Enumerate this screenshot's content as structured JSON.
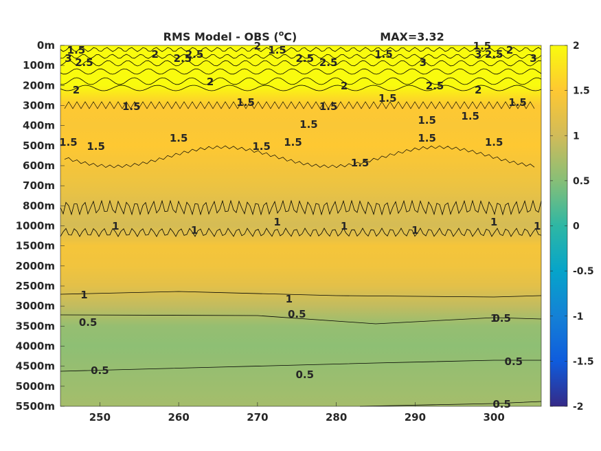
{
  "chart_data": {
    "type": "heatmap",
    "title": "RMS Model - OBS (",
    "title_sup": "o",
    "title_unit": "C)",
    "annotation": "MAX=3.32",
    "x_ticks": [
      250,
      260,
      270,
      280,
      290,
      300
    ],
    "xlim": [
      245,
      306
    ],
    "y_tick_labels": [
      "0m",
      "100m",
      "200m",
      "300m",
      "400m",
      "500m",
      "600m",
      "700m",
      "800m",
      "1000m",
      "1500m",
      "2000m",
      "2500m",
      "3000m",
      "3500m",
      "4000m",
      "4500m",
      "5000m",
      "5500m"
    ],
    "colorbar": {
      "range": [
        -2,
        2
      ],
      "ticks": [
        "2",
        "1.5",
        "1",
        "0.5",
        "0",
        "-0.5",
        "-1",
        "-1.5",
        "-2"
      ]
    },
    "depth_profile_rms": [
      {
        "level": "0m",
        "value": 2.3
      },
      {
        "level": "100m",
        "value": 2.6
      },
      {
        "level": "200m",
        "value": 2.0
      },
      {
        "level": "300m",
        "value": 1.5
      },
      {
        "level": "400m",
        "value": 1.45
      },
      {
        "level": "500m",
        "value": 1.5
      },
      {
        "level": "600m",
        "value": 1.4
      },
      {
        "level": "700m",
        "value": 1.3
      },
      {
        "level": "800m",
        "value": 1.15
      },
      {
        "level": "1000m",
        "value": 1.05
      },
      {
        "level": "1500m",
        "value": 1.4
      },
      {
        "level": "2000m",
        "value": 1.35
      },
      {
        "level": "2500m",
        "value": 1.2
      },
      {
        "level": "3000m",
        "value": 0.9
      },
      {
        "level": "3500m",
        "value": 0.6
      },
      {
        "level": "4000m",
        "value": 0.55
      },
      {
        "level": "4500m",
        "value": 0.6
      },
      {
        "level": "5000m",
        "value": 0.65
      },
      {
        "level": "5500m",
        "value": 0.7
      }
    ],
    "contour_labels": [
      {
        "text": "1.5",
        "x": 247,
        "level": "0m"
      },
      {
        "text": "2",
        "x": 257,
        "level": "0m"
      },
      {
        "text": "2",
        "x": 270,
        "level": "0m"
      },
      {
        "text": "1.5",
        "x": 272.5,
        "level": "0m"
      },
      {
        "text": "1.5",
        "x": 286,
        "level": "0m"
      },
      {
        "text": "1.5",
        "x": 298.5,
        "level": "0m"
      },
      {
        "text": "2",
        "x": 302,
        "level": "0m"
      },
      {
        "text": "2.5",
        "x": 260.5,
        "level": "100m"
      },
      {
        "text": "2.5",
        "x": 279,
        "level": "100m"
      },
      {
        "text": "2.5",
        "x": 300,
        "level": "100m"
      },
      {
        "text": "3",
        "x": 246,
        "level": "100m"
      },
      {
        "text": "3",
        "x": 291,
        "level": "100m"
      },
      {
        "text": "3",
        "x": 298,
        "level": "100m"
      },
      {
        "text": "3",
        "x": 305,
        "level": "100m"
      },
      {
        "text": "2.5",
        "x": 248,
        "level": "100m"
      },
      {
        "text": "2.5",
        "x": 262,
        "level": "100m"
      },
      {
        "text": "2.5",
        "x": 276,
        "level": "100m"
      },
      {
        "text": "2.5",
        "x": 292.5,
        "level": "200m"
      },
      {
        "text": "2",
        "x": 247,
        "level": "200m"
      },
      {
        "text": "2",
        "x": 264,
        "level": "200m"
      },
      {
        "text": "2",
        "x": 281,
        "level": "200m"
      },
      {
        "text": "2",
        "x": 298,
        "level": "200m"
      },
      {
        "text": "1.5",
        "x": 268.5,
        "level": "300m"
      },
      {
        "text": "1.5",
        "x": 279,
        "level": "300m"
      },
      {
        "text": "1.5",
        "x": 286.5,
        "level": "300m"
      },
      {
        "text": "1.5",
        "x": 303,
        "level": "300m"
      },
      {
        "text": "1.5",
        "x": 254,
        "level": "300m"
      },
      {
        "text": "1.5",
        "x": 291.5,
        "level": "400m"
      },
      {
        "text": "1.5",
        "x": 276.5,
        "level": "400m"
      },
      {
        "text": "1.5",
        "x": 297,
        "level": "400m"
      },
      {
        "text": "1.5",
        "x": 246,
        "level": "500m"
      },
      {
        "text": "1.5",
        "x": 249.5,
        "level": "500m"
      },
      {
        "text": "1.5",
        "x": 260,
        "level": "500m"
      },
      {
        "text": "1.5",
        "x": 274.5,
        "level": "500m"
      },
      {
        "text": "1.5",
        "x": 270.5,
        "level": "500m"
      },
      {
        "text": "1.5",
        "x": 283,
        "level": "600m"
      },
      {
        "text": "1.5",
        "x": 291.5,
        "level": "500m"
      },
      {
        "text": "1.5",
        "x": 300,
        "level": "500m"
      },
      {
        "text": "1",
        "x": 252,
        "level": "1000m"
      },
      {
        "text": "1",
        "x": 262,
        "level": "1000m"
      },
      {
        "text": "1",
        "x": 272.5,
        "level": "1000m"
      },
      {
        "text": "1",
        "x": 281,
        "level": "1000m"
      },
      {
        "text": "1",
        "x": 290,
        "level": "1000m"
      },
      {
        "text": "1",
        "x": 300,
        "level": "1000m"
      },
      {
        "text": "1",
        "x": 305.5,
        "level": "1000m"
      },
      {
        "text": "1",
        "x": 248,
        "level": "2500m"
      },
      {
        "text": "1",
        "x": 274,
        "level": "2500m"
      },
      {
        "text": "1",
        "x": 300,
        "level": "3000m"
      },
      {
        "text": "0.5",
        "x": 248.5,
        "level": "3000m"
      },
      {
        "text": "0.5",
        "x": 275,
        "level": "3000m"
      },
      {
        "text": "0.5",
        "x": 301,
        "level": "3000m"
      },
      {
        "text": "0.5",
        "x": 250,
        "level": "4500m"
      },
      {
        "text": "0.5",
        "x": 276,
        "level": "4500m"
      },
      {
        "text": "0.5",
        "x": 302.5,
        "level": "4000m"
      },
      {
        "text": "0.5",
        "x": 301,
        "level": "5500m"
      }
    ],
    "colors": {
      "parula_stops": [
        "#352a87",
        "#0f5cdd",
        "#1481d6",
        "#06a4ca",
        "#2eb7a4",
        "#87bf77",
        "#d1bb59",
        "#fec832",
        "#f9fb0e"
      ],
      "contour": "#000000",
      "axis_text": "#262626"
    }
  }
}
